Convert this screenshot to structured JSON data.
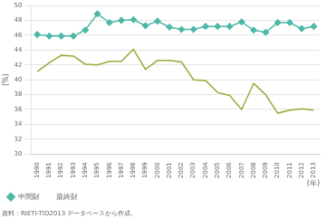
{
  "chart_data": {
    "type": "line",
    "x_label": "(年)",
    "y_label": "(%)",
    "annotations": [
      "資料：RIETI-TID2013 データベースから作成。"
    ],
    "x": [
      1990,
      1991,
      1992,
      1993,
      1994,
      1995,
      1996,
      1997,
      1998,
      1999,
      2000,
      2001,
      2002,
      2003,
      2004,
      2005,
      2006,
      2007,
      2008,
      2009,
      2010,
      2011,
      2012,
      2013
    ],
    "xlim": [
      1989.5,
      2013.5
    ],
    "xticks": [
      1990,
      1991,
      1992,
      1993,
      1994,
      1995,
      1996,
      1997,
      1998,
      1999,
      2000,
      2001,
      2002,
      2003,
      2004,
      2005,
      2006,
      2007,
      2008,
      2009,
      2010,
      2011,
      2012,
      2013
    ],
    "ylim": [
      30,
      50
    ],
    "yticks": [
      30,
      32,
      34,
      36,
      38,
      40,
      42,
      44,
      46,
      48,
      50
    ],
    "grid": "y",
    "legend": "lower left",
    "series": [
      {
        "name": "中間財",
        "color": "#4db8a8",
        "marker": "diamond",
        "values": [
          46.1,
          45.9,
          45.9,
          45.9,
          46.7,
          48.9,
          47.7,
          48.0,
          48.1,
          47.3,
          47.9,
          47.1,
          46.8,
          46.8,
          47.2,
          47.2,
          47.2,
          47.8,
          46.7,
          46.4,
          47.7,
          47.7,
          46.9,
          47.2
        ]
      },
      {
        "name": "最終財",
        "color": "#8fae3a",
        "marker": "none",
        "values": [
          41.1,
          42.3,
          43.3,
          43.2,
          42.1,
          42.0,
          42.5,
          42.5,
          44.1,
          41.4,
          42.6,
          42.6,
          42.4,
          40.0,
          39.9,
          38.3,
          37.9,
          36.0,
          39.5,
          38.0,
          35.5,
          35.9,
          36.1,
          35.9
        ]
      }
    ]
  }
}
